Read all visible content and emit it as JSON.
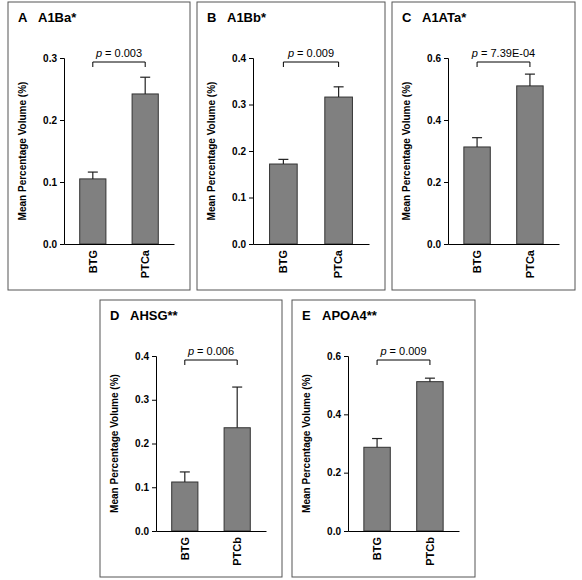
{
  "chart_data": [
    {
      "type": "bar",
      "title": "A",
      "subtitle": "A1Ba*",
      "y_label": "Mean Percentage Volume (%)",
      "categories": [
        "BTG",
        "PTCa"
      ],
      "values": [
        0.105,
        0.242
      ],
      "errors": [
        0.011,
        0.027
      ],
      "annotation": "p = 0.003",
      "color": "#808080",
      "grid": false,
      "ylim": [
        0,
        0.3
      ],
      "yticks": [
        {
          "value": 0,
          "label": "0.0"
        },
        0.1,
        0.2,
        0.3
      ]
    },
    {
      "type": "bar",
      "title": "B",
      "subtitle": "A1Bb*",
      "y_label": "Mean Percentage Volume (%)",
      "categories": [
        "BTG",
        "PTCa"
      ],
      "values": [
        0.172,
        0.316
      ],
      "errors": [
        0.01,
        0.022
      ],
      "annotation": "p = 0.009",
      "color": "#808080",
      "grid": false,
      "ylim": [
        0,
        0.4
      ],
      "yticks": [
        {
          "value": 0,
          "label": "0.0"
        },
        0.1,
        0.2,
        0.3,
        0.4
      ]
    },
    {
      "type": "bar",
      "title": "C",
      "subtitle": "A1ATa*",
      "y_label": "Mean Percentage Volume (%)",
      "categories": [
        "BTG",
        "PTCa"
      ],
      "values": [
        0.313,
        0.51
      ],
      "errors": [
        0.03,
        0.038
      ],
      "annotation": "p = 7.39E-04",
      "color": "#808080",
      "grid": false,
      "ylim": [
        0,
        0.6
      ],
      "yticks": [
        {
          "value": 0,
          "label": "0.0"
        },
        0.2,
        0.4,
        0.6
      ]
    },
    {
      "type": "bar",
      "title": "D",
      "subtitle": "AHSG**",
      "y_label": "Mean Percentage Volume (%)",
      "categories": [
        "BTG",
        "PTCb"
      ],
      "values": [
        0.112,
        0.236
      ],
      "errors": [
        0.023,
        0.093
      ],
      "annotation": "p = 0.006",
      "color": "#808080",
      "grid": false,
      "ylim": [
        0,
        0.4
      ],
      "yticks": [
        {
          "value": 0,
          "label": "0.0"
        },
        0.1,
        0.2,
        0.3,
        0.4
      ]
    },
    {
      "type": "bar",
      "title": "E",
      "subtitle": "APOA4**",
      "y_label": "Mean Percentage Volume (%)",
      "categories": [
        "BTG",
        "PTCb"
      ],
      "values": [
        0.287,
        0.512
      ],
      "errors": [
        0.03,
        0.012
      ],
      "annotation": "p = 0.009",
      "color": "#808080",
      "grid": false,
      "ylim": [
        0,
        0.6
      ],
      "yticks": [
        {
          "value": 0,
          "label": "0.0"
        },
        0.2,
        0.4,
        0.6
      ]
    }
  ]
}
